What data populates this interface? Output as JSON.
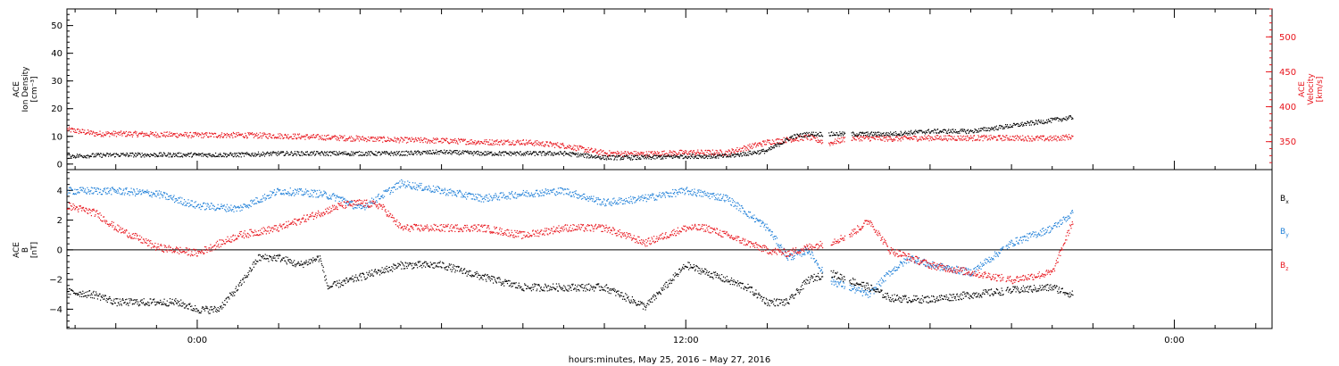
{
  "figure": {
    "xlabel": "hours:minutes, May 25, 2016 – May 27, 2016",
    "xticks": [
      "0:00",
      "12:00",
      "0:00"
    ],
    "x_tick_hours": [
      0,
      12,
      24
    ],
    "x_range_hours": [
      -3.2,
      26.4
    ],
    "colors": {
      "black": "#000000",
      "red": "#e8141c",
      "blue": "#1e7fd8"
    }
  },
  "chart_data": [
    {
      "type": "scatter",
      "panel": "top",
      "left_axis": {
        "label_lines": [
          "ACE",
          "Ion Density",
          "[cm⁻³]"
        ],
        "range": [
          -2,
          56
        ],
        "ticks": [
          0,
          10,
          20,
          30,
          40,
          50
        ],
        "tick_labels": [
          "0",
          "10",
          "20",
          "30",
          "40",
          "50"
        ],
        "color": "#000000"
      },
      "right_axis": {
        "label_lines": [
          "ACE",
          "Velocity",
          "[km/s]"
        ],
        "range": [
          310,
          540
        ],
        "ticks": [
          350,
          400,
          450,
          500
        ],
        "tick_labels": [
          "350",
          "400",
          "450",
          "500"
        ],
        "color": "#e8141c"
      },
      "series": [
        {
          "axis": "left",
          "color": "#000000",
          "x": [
            -3.2,
            -2,
            -1,
            0,
            1,
            2,
            3,
            4,
            5,
            6,
            7,
            8,
            9,
            10,
            11,
            12,
            13,
            14,
            14.6,
            15,
            15.5,
            16,
            17,
            18,
            19,
            20,
            21,
            21.5
          ],
          "y": [
            3,
            3.5,
            3.5,
            3.5,
            3.5,
            4,
            4,
            4,
            4,
            4.5,
            4,
            4,
            4,
            2.5,
            2.5,
            3,
            3,
            5,
            10,
            11,
            11,
            11,
            11,
            12,
            12,
            14,
            16,
            17
          ]
        },
        {
          "axis": "right",
          "color": "#e8141c",
          "x": [
            -3.2,
            -2.5,
            -2,
            -1,
            0,
            1,
            2,
            3,
            4,
            5,
            6,
            7,
            8,
            9,
            10,
            11,
            12,
            13,
            14,
            15,
            15.5,
            16,
            17,
            18,
            19,
            20,
            21,
            21.5
          ],
          "y": [
            368,
            362,
            362,
            361,
            360,
            360,
            359,
            357,
            355,
            353,
            352,
            350,
            350,
            345,
            334,
            333,
            335,
            335,
            350,
            357,
            348,
            356,
            355,
            356,
            356,
            356,
            355,
            358
          ]
        }
      ]
    },
    {
      "type": "scatter",
      "panel": "bottom",
      "left_axis": {
        "label_lines": [
          "ACE",
          "B",
          "[nT]"
        ],
        "range": [
          -5.3,
          5.4
        ],
        "ticks": [
          -4,
          -2,
          0,
          2,
          4
        ],
        "tick_labels": [
          "−4",
          "−2",
          "0",
          "2",
          "4"
        ],
        "color": "#000000"
      },
      "zero_line": true,
      "legend": {
        "position": "right",
        "items": [
          {
            "base": "B",
            "sub": "x",
            "color": "#000000"
          },
          {
            "base": "B",
            "sub": "y",
            "color": "#1e7fd8"
          },
          {
            "base": "B",
            "sub": "z",
            "color": "#e8141c"
          }
        ]
      },
      "series": [
        {
          "legend_index": 0,
          "color": "#000000",
          "x": [
            -3.2,
            -2.5,
            -2,
            -1,
            -0.5,
            0,
            0.5,
            1,
            1.5,
            2,
            2.5,
            3,
            3.2,
            4,
            5,
            6,
            7,
            8,
            9,
            10,
            11,
            12,
            12.5,
            13,
            13.5,
            14,
            14.5,
            15,
            15.5,
            16,
            16.5,
            17,
            17.5,
            18,
            19,
            20,
            21,
            21.5
          ],
          "y": [
            -2.8,
            -3,
            -3.5,
            -3.5,
            -3.5,
            -4,
            -4,
            -2.5,
            -0.5,
            -0.5,
            -1,
            -0.5,
            -2.5,
            -1.8,
            -1,
            -1,
            -1.8,
            -2.5,
            -2.5,
            -2.5,
            -3.8,
            -1,
            -1.5,
            -2,
            -2.5,
            -3.5,
            -3.5,
            -2,
            -1.5,
            -2,
            -2.5,
            -3.2,
            -3.3,
            -3.3,
            -3,
            -2.7,
            -2.5,
            -3
          ]
        },
        {
          "legend_index": 1,
          "color": "#1e7fd8",
          "x": [
            -3.2,
            -2,
            -1,
            0,
            1,
            2,
            3,
            3.5,
            4,
            5,
            6,
            7,
            8,
            9,
            10,
            11,
            12,
            13,
            14,
            14.5,
            15,
            15.5,
            16,
            16.5,
            17,
            17.5,
            18,
            19,
            20,
            21,
            21.5
          ],
          "y": [
            4,
            4,
            3.8,
            3,
            2.8,
            4,
            3.8,
            3.5,
            2.8,
            4.5,
            4,
            3.5,
            3.8,
            4,
            3.2,
            3.5,
            4,
            3.5,
            1.5,
            -0.5,
            0,
            -2,
            -2.5,
            -3,
            -1.5,
            -0.5,
            -1,
            -1.5,
            0.5,
            1.5,
            2.5
          ]
        },
        {
          "legend_index": 2,
          "color": "#e8141c",
          "x": [
            -3.2,
            -2.5,
            -2,
            -1,
            0,
            1,
            2,
            2.5,
            3,
            3.5,
            4,
            4.5,
            5,
            6,
            7,
            8,
            9,
            10,
            11,
            12,
            12.5,
            13,
            13.5,
            14,
            14.5,
            15,
            15.5,
            16,
            16.5,
            17,
            18,
            19,
            20,
            21,
            21.5
          ],
          "y": [
            3,
            2.5,
            1.5,
            0.2,
            -0.2,
            1,
            1.5,
            2,
            2.5,
            3,
            3.2,
            3,
            1.5,
            1.5,
            1.5,
            1,
            1.5,
            1.5,
            0.5,
            1.5,
            1.5,
            1,
            0.5,
            0,
            -0.2,
            0.2,
            0.5,
            1,
            2,
            0,
            -1,
            -1.5,
            -2,
            -1.5,
            2
          ]
        }
      ]
    }
  ]
}
